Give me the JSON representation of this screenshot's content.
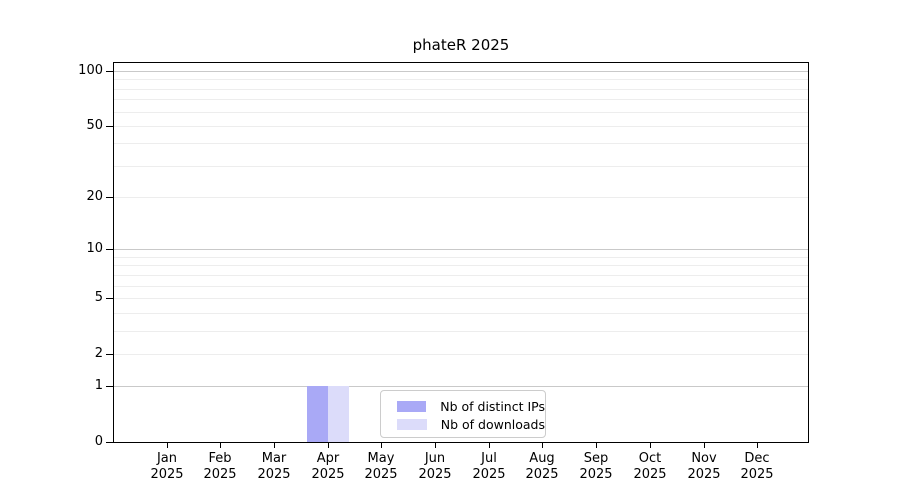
{
  "chart_data": {
    "type": "bar",
    "title": "phateR 2025",
    "categories": [
      "Jan",
      "Feb",
      "Mar",
      "Apr",
      "May",
      "Jun",
      "Jul",
      "Aug",
      "Sep",
      "Oct",
      "Nov",
      "Dec"
    ],
    "category_year": "2025",
    "series": [
      {
        "name": "Nb of distinct IPs",
        "color": "#a9a9f6",
        "values": [
          0,
          0,
          0,
          1,
          0,
          0,
          0,
          0,
          0,
          0,
          0,
          0
        ]
      },
      {
        "name": "Nb of downloads",
        "color": "#dcdcfa",
        "values": [
          0,
          0,
          0,
          1,
          0,
          0,
          0,
          0,
          0,
          0,
          0,
          0
        ]
      }
    ],
    "y_axis": {
      "scale": "log10(value+1)",
      "tick_values": [
        0,
        1,
        2,
        5,
        10,
        20,
        50,
        100
      ],
      "range": [
        0,
        100
      ],
      "major_grid_values": [
        1,
        10,
        100
      ],
      "minor_grid_values": [
        2,
        3,
        4,
        5,
        6,
        7,
        8,
        9,
        20,
        30,
        40,
        50,
        60,
        70,
        80,
        90
      ]
    },
    "legend": {
      "position": "bottom-center"
    },
    "colors": {
      "major_grid": "#c9c9c9",
      "minor_grid": "#ededed",
      "axis": "#000000",
      "legend_border": "#cccccc"
    },
    "grid": true
  }
}
